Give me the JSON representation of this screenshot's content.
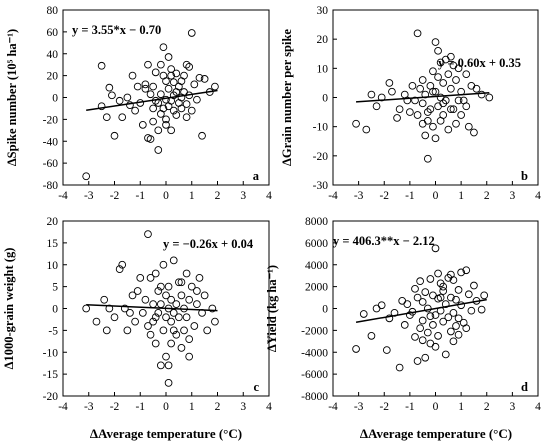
{
  "chart_data": [
    {
      "type": "scatter",
      "panel_label": "a",
      "ylabel": "ΔSpike number (10⁵ ha⁻¹)",
      "xlabel": "",
      "equation": "y = 3.55*x − 0.70",
      "xlim": [
        -4,
        4
      ],
      "ylim": [
        -80,
        80
      ],
      "xticks": [
        "-4",
        "-3",
        "-2",
        "-1",
        "0",
        "1",
        "2",
        "3",
        "4"
      ],
      "yticks": [
        "-80",
        "-60",
        "-40",
        "-20",
        "0",
        "20",
        "40",
        "60",
        "80"
      ],
      "trendline": {
        "slope": 3.55,
        "intercept": -0.7,
        "x_range": [
          -3.1,
          2.0
        ]
      },
      "points": [
        [
          -3.1,
          -72
        ],
        [
          -2.5,
          29
        ],
        [
          -2.5,
          -8
        ],
        [
          -2.3,
          -18
        ],
        [
          -2.2,
          9
        ],
        [
          -2.1,
          2
        ],
        [
          -2.0,
          -35
        ],
        [
          -1.8,
          -3
        ],
        [
          -1.7,
          -18
        ],
        [
          -1.5,
          0
        ],
        [
          -1.4,
          -7
        ],
        [
          -1.2,
          -12
        ],
        [
          -1.1,
          10
        ],
        [
          -1.0,
          -5
        ],
        [
          -0.9,
          -25
        ],
        [
          -0.8,
          8
        ],
        [
          -0.7,
          30
        ],
        [
          -0.7,
          -37
        ],
        [
          -0.6,
          -38
        ],
        [
          -0.6,
          3
        ],
        [
          -0.5,
          -22
        ],
        [
          -0.5,
          10
        ],
        [
          -0.4,
          -3
        ],
        [
          -0.4,
          23
        ],
        [
          -0.3,
          -48
        ],
        [
          -0.3,
          -30
        ],
        [
          -0.3,
          -5
        ],
        [
          -0.2,
          30
        ],
        [
          -0.2,
          3
        ],
        [
          -0.2,
          -15
        ],
        [
          -0.1,
          46
        ],
        [
          -0.1,
          20
        ],
        [
          -0.1,
          -10
        ],
        [
          0.0,
          15
        ],
        [
          0.0,
          -2
        ],
        [
          0.0,
          -20
        ],
        [
          0.1,
          8
        ],
        [
          0.1,
          -8
        ],
        [
          0.1,
          37
        ],
        [
          0.2,
          26
        ],
        [
          0.2,
          -3
        ],
        [
          0.2,
          20
        ],
        [
          0.3,
          14
        ],
        [
          0.3,
          -12
        ],
        [
          0.3,
          2
        ],
        [
          0.4,
          5
        ],
        [
          0.4,
          -16
        ],
        [
          0.5,
          -5
        ],
        [
          0.5,
          10
        ],
        [
          0.6,
          0
        ],
        [
          0.6,
          -10
        ],
        [
          0.7,
          20
        ],
        [
          0.7,
          5
        ],
        [
          0.8,
          30
        ],
        [
          0.8,
          -6
        ],
        [
          0.9,
          28
        ],
        [
          0.9,
          2
        ],
        [
          1.0,
          59
        ],
        [
          1.0,
          -12
        ],
        [
          1.1,
          12
        ],
        [
          1.2,
          -2
        ],
        [
          1.3,
          18
        ],
        [
          1.4,
          -35
        ],
        [
          1.5,
          17
        ],
        [
          1.7,
          5
        ],
        [
          1.9,
          10
        ],
        [
          -0.5,
          -10
        ],
        [
          0.0,
          -25
        ],
        [
          0.4,
          22
        ],
        [
          -1.3,
          20
        ],
        [
          0.6,
          15
        ],
        [
          -0.8,
          12
        ],
        [
          0.2,
          -30
        ],
        [
          0.8,
          -18
        ]
      ]
    },
    {
      "type": "scatter",
      "panel_label": "b",
      "ylabel": "ΔGrain number per spike",
      "xlabel": "",
      "equation": "y = 0.60x + 0.35",
      "xlim": [
        -4,
        4
      ],
      "ylim": [
        -30,
        30
      ],
      "xticks": [
        "-4",
        "-3",
        "-2",
        "-1",
        "0",
        "1",
        "2",
        "3",
        "4"
      ],
      "yticks": [
        "-30",
        "-20",
        "-10",
        "0",
        "10",
        "20",
        "30"
      ],
      "trendline": {
        "slope": 0.6,
        "intercept": 0.35,
        "x_range": [
          -3.1,
          2.1
        ]
      },
      "points": [
        [
          -3.1,
          -9
        ],
        [
          -2.7,
          -11
        ],
        [
          -2.5,
          1
        ],
        [
          -2.3,
          -3
        ],
        [
          -2.1,
          0
        ],
        [
          -1.8,
          5
        ],
        [
          -1.7,
          2
        ],
        [
          -1.5,
          -7
        ],
        [
          -1.4,
          -4
        ],
        [
          -1.2,
          1
        ],
        [
          -1.0,
          -5
        ],
        [
          -0.9,
          4
        ],
        [
          -0.8,
          -1
        ],
        [
          -0.7,
          22
        ],
        [
          -0.7,
          -6
        ],
        [
          -0.6,
          3
        ],
        [
          -0.5,
          -2
        ],
        [
          -0.5,
          6
        ],
        [
          -0.4,
          -13
        ],
        [
          -0.4,
          1
        ],
        [
          -0.3,
          -21
        ],
        [
          -0.3,
          -8
        ],
        [
          -0.2,
          4
        ],
        [
          -0.2,
          -4
        ],
        [
          -0.1,
          9
        ],
        [
          -0.1,
          -10
        ],
        [
          0.0,
          19
        ],
        [
          0.0,
          2
        ],
        [
          0.0,
          -14
        ],
        [
          0.1,
          16
        ],
        [
          0.1,
          -3
        ],
        [
          0.1,
          7
        ],
        [
          0.2,
          12
        ],
        [
          0.2,
          0
        ],
        [
          0.3,
          -6
        ],
        [
          0.3,
          5
        ],
        [
          0.4,
          13
        ],
        [
          0.4,
          -1
        ],
        [
          0.5,
          8
        ],
        [
          0.5,
          -11
        ],
        [
          0.6,
          14
        ],
        [
          0.6,
          3
        ],
        [
          0.7,
          -4
        ],
        [
          0.8,
          6
        ],
        [
          0.8,
          -9
        ],
        [
          0.9,
          10
        ],
        [
          1.0,
          2
        ],
        [
          1.0,
          -6
        ],
        [
          1.1,
          -1
        ],
        [
          1.2,
          8
        ],
        [
          1.3,
          -10
        ],
        [
          1.4,
          4
        ],
        [
          1.5,
          -12
        ],
        [
          1.6,
          3
        ],
        [
          1.8,
          1
        ],
        [
          2.1,
          0
        ],
        [
          -0.5,
          -9
        ],
        [
          -1.1,
          -1
        ],
        [
          0.3,
          -2
        ],
        [
          0.7,
          11
        ],
        [
          -0.3,
          -5
        ],
        [
          0.2,
          -8
        ],
        [
          1.2,
          -3
        ],
        [
          -0.1,
          2
        ],
        [
          0.6,
          -4
        ],
        [
          0.9,
          -1
        ]
      ]
    },
    {
      "type": "scatter",
      "panel_label": "c",
      "ylabel": "Δ1000-grain weight (g)",
      "xlabel": "ΔAverage temperature (°C)",
      "equation": "y = −0.26x + 0.04",
      "xlim": [
        -4,
        4
      ],
      "ylim": [
        -20,
        20
      ],
      "xticks": [
        "-4",
        "-3",
        "-2",
        "-1",
        "0",
        "1",
        "2",
        "3",
        "4"
      ],
      "yticks": [
        "-20",
        "-15",
        "-10",
        "-5",
        "0",
        "5",
        "10",
        "15",
        "20"
      ],
      "trendline": {
        "slope": -0.26,
        "intercept": 0.04,
        "x_range": [
          -3.1,
          2.0
        ]
      },
      "points": [
        [
          -3.1,
          0
        ],
        [
          -2.7,
          -3
        ],
        [
          -2.4,
          2
        ],
        [
          -2.3,
          -5
        ],
        [
          -2.2,
          0
        ],
        [
          -2.0,
          -2
        ],
        [
          -1.8,
          9
        ],
        [
          -1.7,
          10
        ],
        [
          -1.6,
          0
        ],
        [
          -1.5,
          -5
        ],
        [
          -1.4,
          -1
        ],
        [
          -1.3,
          3
        ],
        [
          -1.2,
          -3
        ],
        [
          -1.0,
          7
        ],
        [
          -0.9,
          -1
        ],
        [
          -0.8,
          2
        ],
        [
          -0.7,
          17
        ],
        [
          -0.7,
          -4
        ],
        [
          -0.6,
          7
        ],
        [
          -0.5,
          -3
        ],
        [
          -0.5,
          1
        ],
        [
          -0.4,
          8
        ],
        [
          -0.4,
          -8
        ],
        [
          -0.3,
          4
        ],
        [
          -0.3,
          -1
        ],
        [
          -0.2,
          -13
        ],
        [
          -0.2,
          1
        ],
        [
          -0.1,
          10
        ],
        [
          -0.1,
          -5
        ],
        [
          0.0,
          -11
        ],
        [
          0.0,
          -2
        ],
        [
          0.0,
          3
        ],
        [
          0.1,
          -17
        ],
        [
          0.1,
          -13
        ],
        [
          0.1,
          5
        ],
        [
          0.2,
          -8
        ],
        [
          0.2,
          -3
        ],
        [
          0.2,
          2
        ],
        [
          0.3,
          11
        ],
        [
          0.3,
          -1
        ],
        [
          0.4,
          -6
        ],
        [
          0.4,
          1
        ],
        [
          0.5,
          6
        ],
        [
          0.5,
          -2
        ],
        [
          0.6,
          -9
        ],
        [
          0.6,
          3
        ],
        [
          0.7,
          -5
        ],
        [
          0.7,
          0
        ],
        [
          0.8,
          8
        ],
        [
          0.8,
          -2
        ],
        [
          0.9,
          -11
        ],
        [
          0.9,
          2
        ],
        [
          1.0,
          5
        ],
        [
          1.1,
          -4
        ],
        [
          1.2,
          1
        ],
        [
          1.3,
          7
        ],
        [
          1.4,
          -1
        ],
        [
          1.5,
          3
        ],
        [
          1.6,
          -5
        ],
        [
          1.8,
          0
        ],
        [
          1.9,
          -3
        ],
        [
          -0.6,
          -6
        ],
        [
          -1.1,
          4
        ],
        [
          0.3,
          -5
        ],
        [
          0.6,
          6
        ],
        [
          -0.2,
          5
        ],
        [
          0.9,
          -7
        ],
        [
          1.2,
          4
        ],
        [
          -0.4,
          -2
        ],
        [
          0.1,
          0
        ]
      ]
    },
    {
      "type": "scatter",
      "panel_label": "d",
      "ylabel": "ΔYield (kg ha⁻¹)",
      "xlabel": "ΔAverage temperature (°C)",
      "equation": "y = 406.3**x − 2.12",
      "xlim": [
        -4,
        4
      ],
      "ylim": [
        -8000,
        8000
      ],
      "xticks": [
        "-4",
        "-3",
        "-2",
        "-1",
        "0",
        "1",
        "2",
        "3",
        "4"
      ],
      "yticks": [
        "-8000",
        "-6000",
        "-4000",
        "-2000",
        "0",
        "2000",
        "4000",
        "6000",
        "8000"
      ],
      "trendline": {
        "slope": 406.3,
        "intercept": -2.12,
        "x_range": [
          -3.1,
          2.0
        ]
      },
      "points": [
        [
          -3.1,
          -3700
        ],
        [
          -2.8,
          -500
        ],
        [
          -2.5,
          -2500
        ],
        [
          -2.3,
          0
        ],
        [
          -2.1,
          300
        ],
        [
          -1.9,
          -3800
        ],
        [
          -1.8,
          -900
        ],
        [
          -1.6,
          -400
        ],
        [
          -1.4,
          -5400
        ],
        [
          -1.3,
          700
        ],
        [
          -1.2,
          -1500
        ],
        [
          -1.0,
          -600
        ],
        [
          -0.9,
          -300
        ],
        [
          -0.8,
          -2600
        ],
        [
          -0.7,
          -4800
        ],
        [
          -0.7,
          1000
        ],
        [
          -0.6,
          2500
        ],
        [
          -0.6,
          -1800
        ],
        [
          -0.5,
          -1100
        ],
        [
          -0.5,
          600
        ],
        [
          -0.4,
          -4500
        ],
        [
          -0.4,
          1500
        ],
        [
          -0.3,
          -2200
        ],
        [
          -0.3,
          0
        ],
        [
          -0.2,
          -3200
        ],
        [
          -0.2,
          2700
        ],
        [
          -0.1,
          1200
        ],
        [
          -0.1,
          -1500
        ],
        [
          0.0,
          5500
        ],
        [
          0.0,
          -600
        ],
        [
          0.0,
          -3500
        ],
        [
          0.1,
          3200
        ],
        [
          0.1,
          900
        ],
        [
          0.1,
          -2500
        ],
        [
          0.2,
          2300
        ],
        [
          0.2,
          -200
        ],
        [
          0.3,
          -1200
        ],
        [
          0.3,
          1600
        ],
        [
          0.4,
          -4200
        ],
        [
          0.4,
          400
        ],
        [
          0.5,
          2800
        ],
        [
          0.5,
          -800
        ],
        [
          0.6,
          -2100
        ],
        [
          0.6,
          1000
        ],
        [
          0.7,
          2600
        ],
        [
          0.7,
          -400
        ],
        [
          0.8,
          -1600
        ],
        [
          0.8,
          800
        ],
        [
          0.9,
          1700
        ],
        [
          0.9,
          -900
        ],
        [
          1.0,
          3300
        ],
        [
          1.0,
          300
        ],
        [
          1.1,
          -1300
        ],
        [
          1.2,
          3500
        ],
        [
          1.3,
          1300
        ],
        [
          1.4,
          -200
        ],
        [
          1.5,
          2100
        ],
        [
          1.6,
          700
        ],
        [
          1.8,
          -100
        ],
        [
          1.9,
          1200
        ],
        [
          -1.1,
          400
        ],
        [
          0.3,
          2000
        ],
        [
          0.7,
          -3000
        ],
        [
          -0.2,
          -700
        ],
        [
          0.2,
          1000
        ],
        [
          1.2,
          -1800
        ],
        [
          -0.5,
          -2900
        ],
        [
          0.6,
          3100
        ],
        [
          0.9,
          -2400
        ],
        [
          -0.8,
          1800
        ]
      ]
    }
  ]
}
